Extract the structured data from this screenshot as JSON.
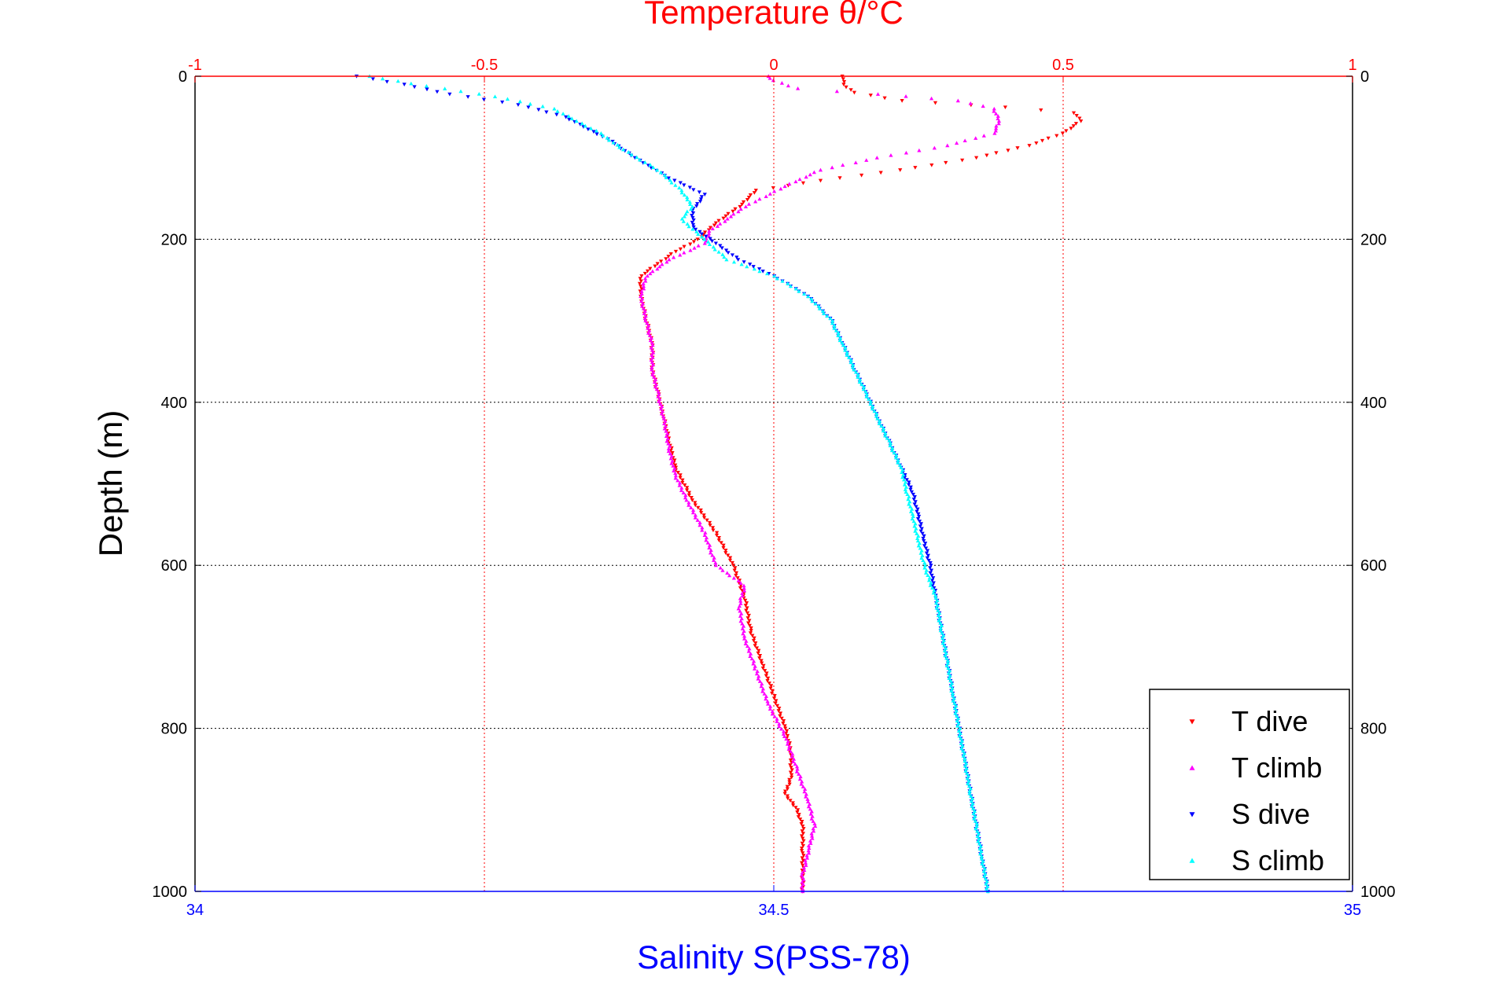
{
  "chart_data": {
    "type": "scatter",
    "title": "Temperature θ/°C",
    "ylabel": "Depth (m)",
    "xlabel": "Salinity S(PSS-78)",
    "y_axis": {
      "lim": [
        0,
        1000
      ],
      "reversed": true,
      "ticks": [
        0,
        200,
        400,
        600,
        800,
        1000
      ],
      "labels_on": "both sides"
    },
    "x_top_axis": {
      "quantity": "temperature",
      "lim": [
        -1,
        1
      ],
      "ticks": [
        -1,
        -0.5,
        0,
        0.5,
        1
      ],
      "tick_labels": [
        "-1",
        "-0.5",
        "0",
        "0.5",
        "1"
      ],
      "color": "#ff0000"
    },
    "x_bottom_axis": {
      "quantity": "salinity",
      "lim": [
        34,
        35
      ],
      "ticks": [
        34,
        34.5,
        35
      ],
      "tick_labels": [
        "34",
        "34.5",
        "35"
      ],
      "color": "#0000ff"
    },
    "grid": true,
    "legend": {
      "position": "bottom-right"
    },
    "series": [
      {
        "name": "T dive",
        "axis": "top",
        "color": "#ff0000",
        "marker": "triangle-down",
        "points": [
          [
            0.12,
            0
          ],
          [
            0.12,
            10
          ],
          [
            0.14,
            20
          ],
          [
            0.22,
            30
          ],
          [
            0.4,
            38
          ],
          [
            0.52,
            45
          ],
          [
            0.53,
            55
          ],
          [
            0.5,
            70
          ],
          [
            0.44,
            85
          ],
          [
            0.35,
            100
          ],
          [
            0.22,
            115
          ],
          [
            0.08,
            128
          ],
          [
            -0.03,
            140
          ],
          [
            -0.06,
            160
          ],
          [
            -0.1,
            180
          ],
          [
            -0.13,
            200
          ],
          [
            -0.17,
            215
          ],
          [
            -0.2,
            230
          ],
          [
            -0.23,
            245
          ],
          [
            -0.23,
            270
          ],
          [
            -0.22,
            300
          ],
          [
            -0.21,
            330
          ],
          [
            -0.21,
            360
          ],
          [
            -0.2,
            390
          ],
          [
            -0.19,
            420
          ],
          [
            -0.18,
            450
          ],
          [
            -0.17,
            480
          ],
          [
            -0.14,
            520
          ],
          [
            -0.1,
            560
          ],
          [
            -0.07,
            600
          ],
          [
            -0.05,
            640
          ],
          [
            -0.04,
            680
          ],
          [
            -0.02,
            720
          ],
          [
            0.0,
            760
          ],
          [
            0.02,
            800
          ],
          [
            0.03,
            830
          ],
          [
            0.03,
            860
          ],
          [
            0.02,
            880
          ],
          [
            0.04,
            900
          ],
          [
            0.05,
            920
          ],
          [
            0.05,
            950
          ],
          [
            0.05,
            980
          ],
          [
            0.05,
            1000
          ]
        ]
      },
      {
        "name": "T climb",
        "axis": "top",
        "color": "#ff00ff",
        "marker": "triangle-up",
        "points": [
          [
            -0.01,
            0
          ],
          [
            0.0,
            5
          ],
          [
            0.04,
            15
          ],
          [
            0.18,
            22
          ],
          [
            0.32,
            30
          ],
          [
            0.38,
            40
          ],
          [
            0.39,
            55
          ],
          [
            0.38,
            70
          ],
          [
            0.3,
            85
          ],
          [
            0.18,
            100
          ],
          [
            0.08,
            115
          ],
          [
            0.02,
            135
          ],
          [
            -0.05,
            160
          ],
          [
            -0.08,
            175
          ],
          [
            -0.11,
            190
          ],
          [
            -0.12,
            205
          ],
          [
            -0.18,
            225
          ],
          [
            -0.22,
            245
          ],
          [
            -0.23,
            270
          ],
          [
            -0.22,
            300
          ],
          [
            -0.21,
            330
          ],
          [
            -0.21,
            360
          ],
          [
            -0.2,
            390
          ],
          [
            -0.19,
            420
          ],
          [
            -0.18,
            460
          ],
          [
            -0.17,
            490
          ],
          [
            -0.15,
            520
          ],
          [
            -0.12,
            560
          ],
          [
            -0.1,
            600
          ],
          [
            -0.05,
            625
          ],
          [
            -0.06,
            650
          ],
          [
            -0.05,
            690
          ],
          [
            -0.03,
            730
          ],
          [
            -0.01,
            770
          ],
          [
            0.02,
            810
          ],
          [
            0.04,
            850
          ],
          [
            0.06,
            890
          ],
          [
            0.07,
            920
          ],
          [
            0.06,
            950
          ],
          [
            0.05,
            980
          ],
          [
            0.05,
            1000
          ]
        ]
      },
      {
        "name": "S dive",
        "axis": "bottom",
        "color": "#0000ff",
        "marker": "triangle-down",
        "points": [
          [
            34.14,
            0
          ],
          [
            34.18,
            10
          ],
          [
            34.22,
            22
          ],
          [
            34.28,
            35
          ],
          [
            34.32,
            50
          ],
          [
            34.34,
            65
          ],
          [
            34.36,
            80
          ],
          [
            34.38,
            100
          ],
          [
            34.41,
            125
          ],
          [
            34.44,
            145
          ],
          [
            34.43,
            165
          ],
          [
            34.43,
            185
          ],
          [
            34.45,
            205
          ],
          [
            34.47,
            225
          ],
          [
            34.5,
            245
          ],
          [
            34.53,
            270
          ],
          [
            34.55,
            300
          ],
          [
            34.56,
            330
          ],
          [
            34.57,
            360
          ],
          [
            34.58,
            390
          ],
          [
            34.59,
            420
          ],
          [
            34.6,
            450
          ],
          [
            34.61,
            480
          ],
          [
            34.62,
            510
          ],
          [
            34.625,
            540
          ],
          [
            34.63,
            570
          ],
          [
            34.635,
            600
          ],
          [
            34.64,
            640
          ],
          [
            34.645,
            680
          ],
          [
            34.65,
            720
          ],
          [
            34.655,
            760
          ],
          [
            34.66,
            800
          ],
          [
            34.665,
            840
          ],
          [
            34.67,
            880
          ],
          [
            34.675,
            920
          ],
          [
            34.68,
            960
          ],
          [
            34.685,
            1000
          ]
        ]
      },
      {
        "name": "S climb",
        "axis": "bottom",
        "color": "#00ffff",
        "marker": "triangle-up",
        "points": [
          [
            34.15,
            0
          ],
          [
            34.2,
            12
          ],
          [
            34.26,
            25
          ],
          [
            34.31,
            40
          ],
          [
            34.33,
            55
          ],
          [
            34.35,
            70
          ],
          [
            34.37,
            90
          ],
          [
            34.4,
            115
          ],
          [
            34.42,
            140
          ],
          [
            34.43,
            160
          ],
          [
            34.42,
            175
          ],
          [
            34.44,
            200
          ],
          [
            34.46,
            225
          ],
          [
            34.5,
            245
          ],
          [
            34.53,
            270
          ],
          [
            34.55,
            300
          ],
          [
            34.56,
            330
          ],
          [
            34.57,
            360
          ],
          [
            34.58,
            390
          ],
          [
            34.59,
            420
          ],
          [
            34.6,
            450
          ],
          [
            34.61,
            480
          ],
          [
            34.615,
            510
          ],
          [
            34.62,
            540
          ],
          [
            34.625,
            570
          ],
          [
            34.63,
            600
          ],
          [
            34.64,
            640
          ],
          [
            34.645,
            680
          ],
          [
            34.65,
            720
          ],
          [
            34.655,
            760
          ],
          [
            34.66,
            800
          ],
          [
            34.665,
            840
          ],
          [
            34.67,
            880
          ],
          [
            34.675,
            920
          ],
          [
            34.68,
            960
          ],
          [
            34.685,
            1000
          ]
        ]
      }
    ]
  }
}
